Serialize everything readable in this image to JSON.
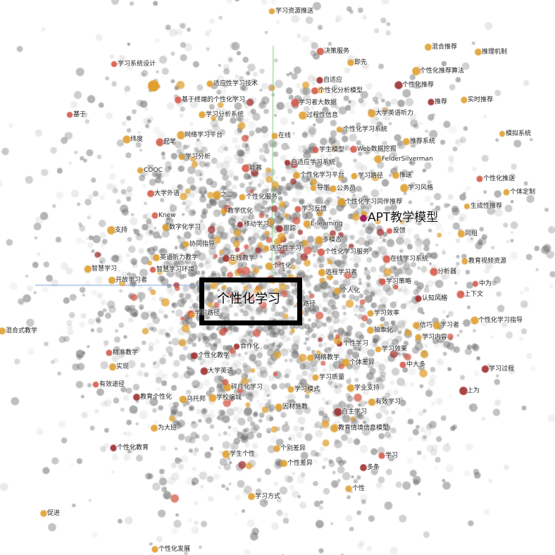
{
  "focus_label": "个性化学习",
  "highlight_label": "APT教学模型",
  "colors": {
    "background": "#ffffff",
    "cloud": "#8a8a8a",
    "node_orange": "#e0a030",
    "node_red": "#d65a4a",
    "node_dark": "#a03030",
    "highlight": "#a02060",
    "green_axis": "#7ecb7e",
    "blue_axis": "#7aa0d0",
    "focus_border": "#000000"
  },
  "labels": [
    "学习资源推送",
    "决策服务",
    "混合推荐",
    "推理机制",
    "学习系统设计",
    "即先",
    "个性化推荐算法",
    "自适应",
    "个性化推荐",
    "适应性学习技术",
    "个性化分析模型",
    "基于终端的个性化学习",
    "学习者大数据",
    "推荐",
    "实时推荐",
    "学习分析系统",
    "过程性信息",
    "大学英语听力",
    "基于",
    "个性化学习系统",
    "模拟系统",
    "网络学习平台",
    "在线",
    "纬度",
    "起笔",
    "学生模型",
    "Web数据挖掘",
    "推荐系统",
    "FelderSilverman",
    "学习分析",
    "自适应学习系统",
    "COOC",
    "能慕",
    "个性化学习平台",
    "学习路径",
    "推送",
    "个性化推送",
    "导学",
    "公务员",
    "学习风格",
    "个体定制",
    "大学外语",
    "之二",
    "个性化服务",
    "个性化学习同伴推荐",
    "生成性推荐",
    "Knew",
    "学习反馈",
    "教学优化",
    "APT教学模型",
    "支持",
    "数字化学习",
    "移动学习",
    "E-learning",
    "跟踪",
    "反馈",
    "同组",
    "多模态",
    "协同指导",
    "适应性学习",
    "英语听力教学",
    "在线教学",
    "个性化学习服务",
    "在线学习系统",
    "教育视频资源",
    "智慧学习",
    "智慧学习环境",
    "个性化",
    "分析器",
    "远程学习者",
    "开放学习者",
    "学习策略",
    "中为",
    "个人化",
    "认知风格",
    "上下文",
    "学习路径",
    "路径",
    "个性化学习指导",
    "学习效率",
    "抽象化",
    "信巧",
    "学习者",
    "学习内容",
    "个性学习",
    "合作化",
    "学习效果",
    "精准教学",
    "个性化教学",
    "网络教学",
    "个体差异",
    "实现",
    "大学英语",
    "中大多",
    "学习过程",
    "有效途径",
    "学习质量",
    "学业支持",
    "碎片化学习",
    "学习模式",
    "教育个性化",
    "乌托邦",
    "学校编城",
    "有效学习",
    "上为",
    "因材施教",
    "自主学习",
    "为大班",
    "教育情境信息模型",
    "个性化教育",
    "学生个性",
    "个别差异",
    "学习",
    "个性差异",
    "多条",
    "个性",
    "学习方式",
    "促进",
    "个性化发展",
    "混合式教学"
  ]
}
